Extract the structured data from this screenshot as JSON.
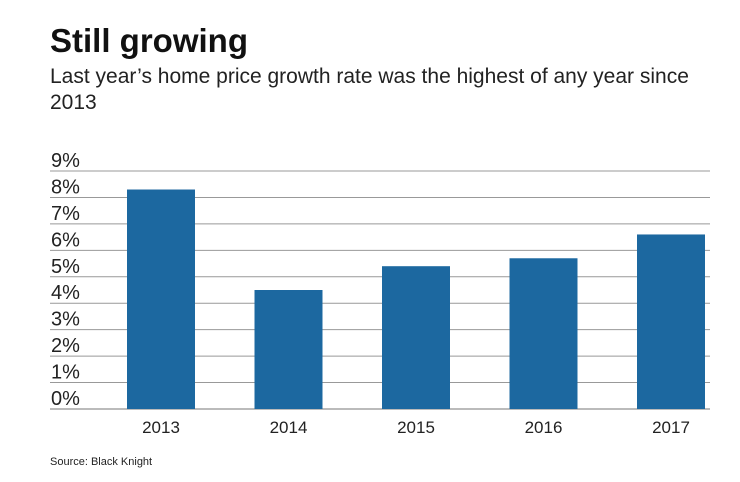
{
  "chart_data": {
    "type": "bar",
    "title": "Still growing",
    "subtitle": "Last year’s home price growth rate was the highest of any year since 2013",
    "categories": [
      "2013",
      "2014",
      "2015",
      "2016",
      "2017"
    ],
    "values": [
      8.3,
      4.5,
      5.4,
      5.7,
      6.6
    ],
    "ylim": [
      0,
      9
    ],
    "yticks": [
      "0%",
      "1%",
      "2%",
      "3%",
      "4%",
      "5%",
      "6%",
      "7%",
      "8%",
      "9%"
    ],
    "grid": true,
    "bar_color": "#1c68a0",
    "source": "Source: Black Knight"
  }
}
